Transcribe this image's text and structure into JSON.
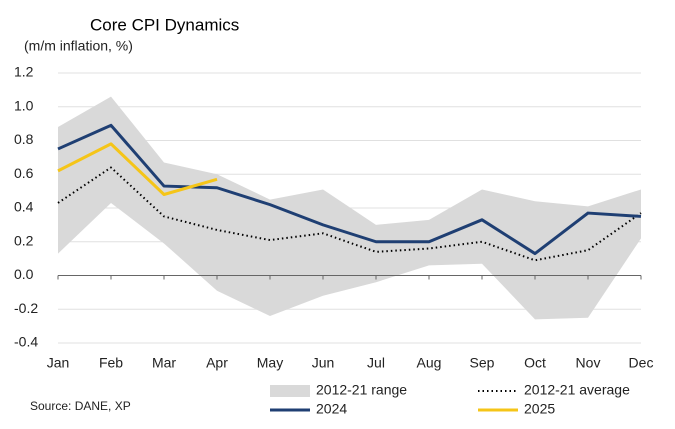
{
  "chart_data": {
    "type": "line",
    "title": "Core CPI Dynamics",
    "subtitle": "(m/m inflation, %)",
    "source": "Source: DANE, XP",
    "categories": [
      "Jan",
      "Feb",
      "Mar",
      "Apr",
      "May",
      "Jun",
      "Jul",
      "Aug",
      "Sep",
      "Oct",
      "Nov",
      "Dec"
    ],
    "series": [
      {
        "name": "2012-21 range",
        "style": "band",
        "color": "#d9d9d9",
        "low": [
          0.13,
          0.43,
          0.19,
          -0.09,
          -0.24,
          -0.12,
          -0.04,
          0.06,
          0.07,
          -0.26,
          -0.25,
          0.22
        ],
        "values": [
          0.88,
          1.06,
          0.67,
          0.6,
          0.45,
          0.51,
          0.3,
          0.33,
          0.51,
          0.44,
          0.41,
          0.51
        ]
      },
      {
        "name": "2012-21 average",
        "style": "dotted",
        "color": "#000000",
        "values": [
          0.43,
          0.64,
          0.35,
          0.27,
          0.21,
          0.25,
          0.14,
          0.16,
          0.2,
          0.09,
          0.15,
          0.37
        ]
      },
      {
        "name": "2024",
        "style": "solid",
        "color": "#1f3f73",
        "values": [
          0.75,
          0.89,
          0.53,
          0.52,
          0.42,
          0.3,
          0.2,
          0.2,
          0.33,
          0.13,
          0.37,
          0.35
        ]
      },
      {
        "name": "2025",
        "style": "solid",
        "color": "#f5c518",
        "values": [
          0.62,
          0.78,
          0.48,
          0.57,
          null,
          null,
          null,
          null,
          null,
          null,
          null,
          null
        ]
      }
    ],
    "ylim": [
      -0.4,
      1.2
    ],
    "yticks": [
      -0.4,
      -0.2,
      {
        "value": 0,
        "label": "0.0"
      },
      0.2,
      0.4,
      0.6,
      0.8,
      {
        "value": 1,
        "label": "1.0"
      },
      1.2
    ],
    "grid": true
  }
}
